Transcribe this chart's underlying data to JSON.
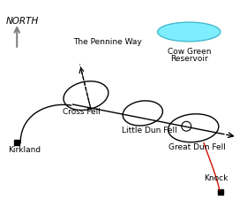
{
  "north_label": "NORTH",
  "pennine_way_label": "The Pennine Way",
  "reservoir_label_1": "Cow Green",
  "reservoir_label_2": "Reservoir",
  "cross_fell_label": "Cross Fell",
  "little_dun_fell_label": "Little Dun Fell",
  "great_dun_fell_label": "Great Dun Fell",
  "knock_label": "Knock",
  "kirkland_label": "Kirkland",
  "reservoir_fill": "#7eeeff",
  "reservoir_edge": "#44bbcc",
  "red_path_color": "#cc1100",
  "font_size": 6.5,
  "north_fontsize": 7.5
}
